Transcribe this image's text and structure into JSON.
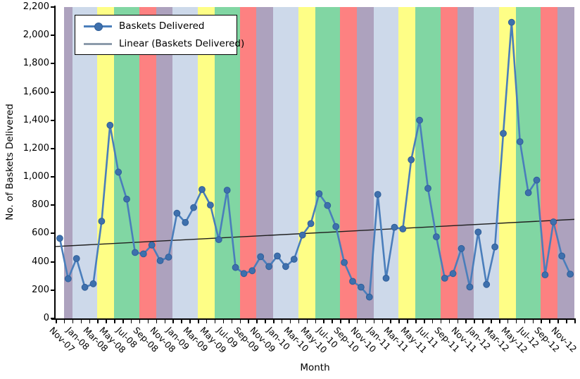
{
  "chart_data": {
    "type": "line",
    "xlabel": "Month",
    "ylabel": "No. of Baskets Delivered",
    "ylim": [
      0,
      2200
    ],
    "ytick_step": 200,
    "x_label_every": 2,
    "grid": false,
    "legend_position": "top-left",
    "categories": [
      "Nov-07",
      "Dec-07",
      "Jan-08",
      "Feb-08",
      "Mar-08",
      "Apr-08",
      "May-08",
      "Jun-08",
      "Jul-08",
      "Aug-08",
      "Sep-08",
      "Oct-08",
      "Nov-08",
      "Dec-08",
      "Jan-09",
      "Feb-09",
      "Mar-09",
      "Apr-09",
      "May-09",
      "Jun-09",
      "Jul-09",
      "Aug-09",
      "Sep-09",
      "Oct-09",
      "Nov-09",
      "Dec-09",
      "Jan-10",
      "Feb-10",
      "Mar-10",
      "Apr-10",
      "May-10",
      "Jun-10",
      "Jul-10",
      "Aug-10",
      "Sep-10",
      "Oct-10",
      "Nov-10",
      "Dec-10",
      "Jan-11",
      "Feb-11",
      "Mar-11",
      "Apr-11",
      "May-11",
      "Jun-11",
      "Jul-11",
      "Aug-11",
      "Sep-11",
      "Oct-11",
      "Nov-11",
      "Dec-11",
      "Jan-12",
      "Feb-12",
      "Mar-12",
      "Apr-12",
      "May-12",
      "Jun-12",
      "Jul-12",
      "Aug-12",
      "Sep-12",
      "Oct-12",
      "Nov-12",
      "Dec-12"
    ],
    "series": [
      {
        "name": "Baskets Delivered",
        "type": "line-with-markers",
        "values": [
          566,
          280,
          423,
          220,
          245,
          687,
          1365,
          1034,
          843,
          466,
          456,
          518,
          408,
          433,
          743,
          678,
          783,
          911,
          801,
          557,
          906,
          360,
          317,
          337,
          436,
          367,
          441,
          367,
          418,
          589,
          670,
          881,
          798,
          649,
          395,
          262,
          221,
          151,
          876,
          284,
          644,
          632,
          1121,
          1400,
          919,
          577,
          284,
          317,
          494,
          222,
          610,
          240,
          505,
          1307,
          2092,
          1249,
          888,
          977,
          308,
          682,
          441,
          313
        ]
      },
      {
        "name": "Linear (Baskets Delivered)",
        "type": "linear-trend",
        "start_value": 508,
        "end_value": 700
      }
    ],
    "background_bands": {
      "note": "vertical month bands behind series",
      "first_band_color": "#ffffff",
      "by_calendar_month": {
        "Jan": "#cdd9ea",
        "Feb": "#cdd9ea",
        "Mar": "#cdd9ea",
        "Apr": "#fefe86",
        "May": "#fefe86",
        "Jun": "#81d6a3",
        "Jul": "#81d6a3",
        "Aug": "#81d6a3",
        "Sep": "#fd8181",
        "Oct": "#fd8181",
        "Nov": "#ada2be",
        "Dec": "#ada2be"
      }
    }
  },
  "legend": {
    "items": [
      {
        "label": "Baskets Delivered",
        "swatch": "blue-line-with-dot"
      },
      {
        "label": "Linear (Baskets Delivered)",
        "swatch": "gray-line"
      }
    ]
  },
  "colors": {
    "series_line": "#4a7ebb",
    "series_marker_fill": "#3e70ad",
    "series_marker_stroke": "#30movie5f99",
    "trend_line_chart": "#1f1f1f",
    "trend_line_legend": "#8c9bab",
    "axis": "#000000",
    "plot_background": "#ffffff"
  }
}
